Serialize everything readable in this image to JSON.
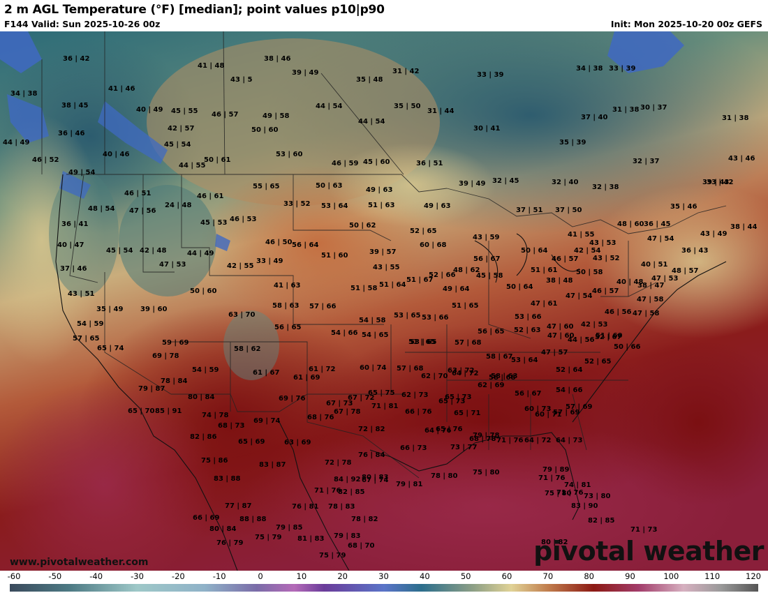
{
  "header": {
    "title": "2 m AGL Temperature (°F) [median]; point values p10|p90",
    "valid": "F144 Valid: Sun 2025-10-26 00z",
    "init": "Init: Mon 2025-10-20 00z GEFS"
  },
  "footer": {
    "url": "www.pivotalweather.com",
    "logo": "pivotal weather"
  },
  "colorbar": {
    "ticks": [
      "-60",
      "-50",
      "-40",
      "-30",
      "-20",
      "-10",
      "0",
      "10",
      "20",
      "30",
      "40",
      "50",
      "60",
      "70",
      "80",
      "90",
      "100",
      "110",
      "120"
    ]
  },
  "point_values": [
    "36|42",
    "41|48",
    "38|46",
    "39|49",
    "31|42",
    "33|39",
    "34|38",
    "33|39",
    "34|38",
    "41|46",
    "43|5",
    "35|48",
    "38|45",
    "40|49",
    "45|55",
    "46|57",
    "49|58",
    "44|54",
    "35|50",
    "31|44",
    "37|40",
    "31|38",
    "30|37",
    "36|46",
    "42|57",
    "50|60",
    "44|54",
    "30|41",
    "31|38",
    "44|49",
    "40|46",
    "45|54",
    "53|60",
    "35|39",
    "46|52",
    "44|55",
    "50|61",
    "46|59",
    "45|60",
    "36|51",
    "32|37",
    "43|46",
    "49|54",
    "46|51",
    "24|48",
    "46|61",
    "55|65",
    "50|63",
    "49|63",
    "33|42",
    "39|49",
    "32|45",
    "32|40",
    "32|38",
    "39|43",
    "48|54",
    "47|56",
    "45|53",
    "33|52",
    "53|64",
    "51|63",
    "49|63",
    "37|51",
    "37|50",
    "35|46",
    "36|41",
    "46|53",
    "50|62",
    "52|65",
    "48|60",
    "36|45",
    "43|49",
    "38|44",
    "40|47",
    "45|54",
    "42|48",
    "46|50",
    "56|64",
    "60|68",
    "43|59",
    "41|55",
    "43|53",
    "47|54",
    "36|43",
    "44|49",
    "39|57",
    "50|64",
    "42|54",
    "47|53",
    "42|55",
    "33|49",
    "51|60",
    "56|67",
    "46|57",
    "43|52",
    "40|51",
    "37|46",
    "43|55",
    "52|66",
    "48|62",
    "45|58",
    "51|61",
    "50|58",
    "38|48",
    "48|57",
    "47|53",
    "43|51",
    "50|60",
    "41|63",
    "51|58",
    "51|64",
    "51|67",
    "49|64",
    "50|64",
    "46|57",
    "40|48",
    "38|47",
    "35|49",
    "39|60",
    "58|63",
    "57|66",
    "47|54",
    "51|65",
    "47|61",
    "47|58",
    "54|59",
    "63|70",
    "54|58",
    "53|65",
    "53|66",
    "53|66",
    "47|60",
    "46|56",
    "47|58",
    "57|65",
    "56|65",
    "54|66",
    "54|65",
    "51|65",
    "56|65",
    "52|63",
    "47|60",
    "42|53",
    "51|60",
    "65|74",
    "59|69",
    "58|62",
    "53|65",
    "57|68",
    "44|56",
    "52|67",
    "50|66",
    "69|78",
    "54|59",
    "61|72",
    "60|74",
    "57|68",
    "58|67",
    "53|64",
    "47|57",
    "63|72",
    "61|67",
    "61|69",
    "64|72",
    "52|64",
    "58|63",
    "78|84",
    "62|70",
    "62|69",
    "58|68",
    "52|65",
    "67|72",
    "79|87",
    "67|73",
    "65|73",
    "56|67",
    "54|66",
    "57|69",
    "80|84",
    "69|76",
    "65|73",
    "65|75",
    "62|73",
    "60|73",
    "57|69",
    "65|70",
    "85|91",
    "71|81",
    "66|76",
    "65|71",
    "74|78",
    "67|78",
    "68|76",
    "69|74",
    "68|73",
    "65|76",
    "60|71",
    "82|86",
    "72|82",
    "64|76",
    "65|69",
    "63|69",
    "68|78",
    "71|76",
    "64|72",
    "64|73",
    "73|77",
    "79|78",
    "66|73",
    "76|84",
    "75|86",
    "83|87",
    "72|78",
    "79|89",
    "67|74",
    "80|83",
    "79|81",
    "78|80",
    "75|80",
    "83|88",
    "84|92",
    "71|76",
    "74|81",
    "71|76",
    "73|80",
    "75|80",
    "71|76",
    "77|87",
    "82|85",
    "83|90",
    "76|81",
    "78|83",
    "66|69",
    "88|88",
    "82|85",
    "78|82",
    "80|84",
    "79|85",
    "71|73",
    "79|83",
    "75|79",
    "81|83",
    "68|70",
    "76|79",
    "80|82",
    "75|79",
    "70|76"
  ]
}
